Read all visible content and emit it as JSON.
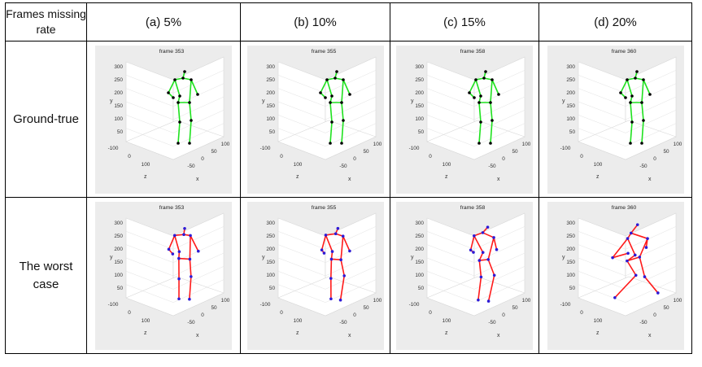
{
  "table": {
    "corner_label": "Frames missing rate",
    "columns": [
      "(a) 5%",
      "(b) 10%",
      "(c) 15%",
      "(d) 20%"
    ],
    "rows": [
      {
        "label": "Ground-true",
        "bone_color": "#1ee21e",
        "joint_color": "#000000"
      },
      {
        "label": "The worst case",
        "bone_color": "#ff1a1a",
        "joint_color": "#2d1ad6"
      }
    ]
  },
  "chart_data": {
    "type": "scatter",
    "axes": {
      "y_ticks": [
        "300",
        "250",
        "200",
        "150",
        "100",
        "50"
      ],
      "z_ticks": [
        "-100",
        "0",
        "100"
      ],
      "x_ticks": [
        "-50",
        "0",
        "50",
        "100"
      ],
      "xlabel": "x",
      "ylabel": "y",
      "zlabel": "z",
      "grid": true
    },
    "frames": [
      "frame 353",
      "frame 355",
      "frame 358",
      "frame 360"
    ]
  }
}
